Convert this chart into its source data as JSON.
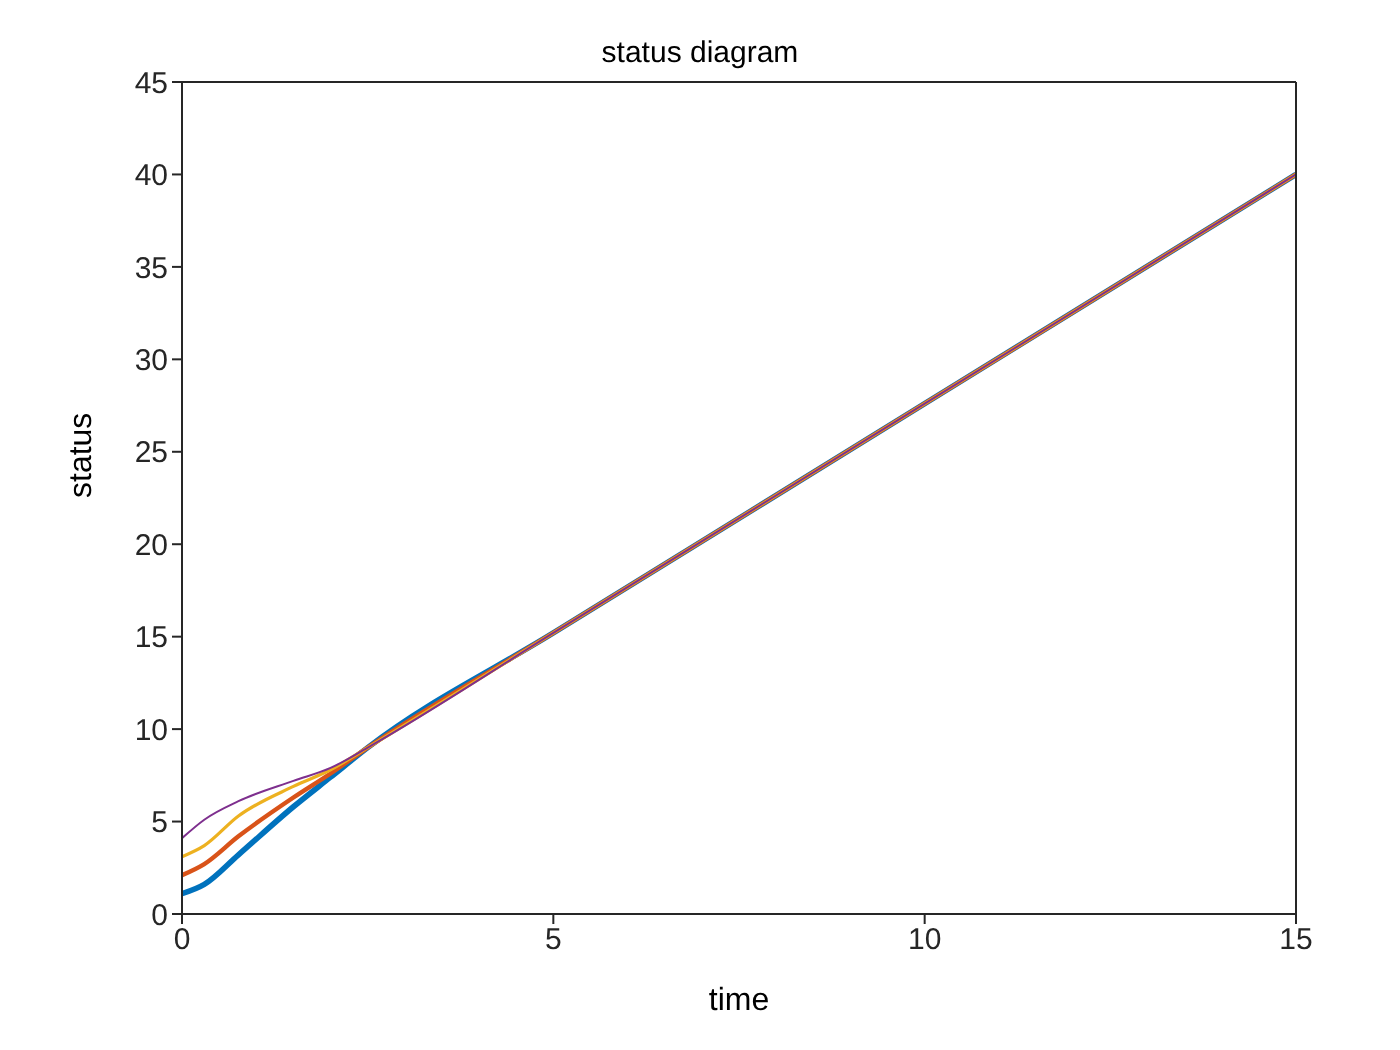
{
  "chart_data": {
    "type": "line",
    "title": "status diagram",
    "xlabel": "time",
    "ylabel": "status",
    "xlim": [
      0,
      15
    ],
    "xticks": [
      0,
      5,
      10,
      15
    ],
    "ylim": [
      0,
      45
    ],
    "yticks": [
      0,
      5,
      10,
      15,
      20,
      25,
      30,
      35,
      40,
      45
    ],
    "grid": false,
    "legend": false,
    "marker": "none",
    "line_style": "solid",
    "x": [
      0,
      0.3,
      0.76,
      1.5,
      2,
      2.5,
      5,
      10,
      15
    ],
    "series": [
      {
        "color": "#0072bd",
        "values": [
          1.1,
          1.6,
          3.2,
          5.8,
          7.4,
          9,
          15.2,
          27.6,
          40
        ]
      },
      {
        "color": "#d95319",
        "values": [
          2.1,
          2.7,
          4.2,
          6.3,
          7.6,
          9,
          15.2,
          27.6,
          40
        ]
      },
      {
        "color": "#edb120",
        "values": [
          3.1,
          3.7,
          5.3,
          6.9,
          7.8,
          9,
          15.2,
          27.6,
          40
        ]
      },
      {
        "color": "#7e2f8e",
        "values": [
          4.1,
          5.1,
          6.1,
          7.2,
          7.9,
          9,
          15.2,
          27.6,
          40
        ]
      }
    ]
  }
}
